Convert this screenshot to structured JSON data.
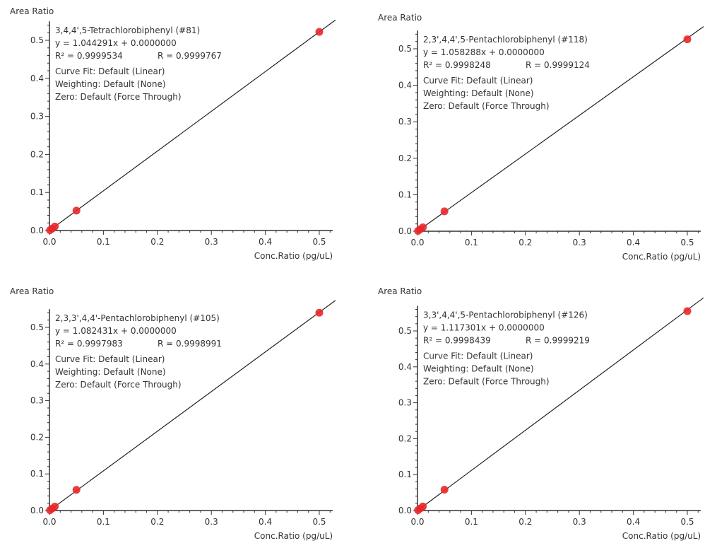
{
  "chart_data": [
    {
      "type": "scatter",
      "title": "3,4,4',5-Tetrachlorobiphenyl (#81)",
      "equation": "y = 1.044291x + 0.0000000",
      "r2_text": "R² = 0.9999534",
      "r_text": "R = 0.9999767",
      "curve_fit": "Curve Fit: Default (Linear)",
      "weighting": "Weighting: Default (None)",
      "zero": "Zero: Default (Force Through)",
      "ylabel": "Area Ratio",
      "xlabel": "Conc.Ratio (pg/uL)",
      "slope": 1.044291,
      "x": [
        0.001,
        0.005,
        0.01,
        0.05,
        0.5
      ],
      "y": [
        0.001,
        0.005,
        0.0104,
        0.0522,
        0.522
      ],
      "xlim": [
        0,
        0.525
      ],
      "ylim": [
        0,
        0.55
      ],
      "xticks": [
        "0.0",
        "0.1",
        "0.2",
        "0.3",
        "0.4",
        "0.5"
      ],
      "yticks": [
        "0.0",
        "0.1",
        "0.2",
        "0.3",
        "0.4",
        "0.5"
      ]
    },
    {
      "type": "scatter",
      "title": "2,3',4,4',5-Pentachlorobiphenyl (#118)",
      "equation": "y = 1.058288x + 0.0000000",
      "r2_text": "R² = 0.9998248",
      "r_text": "R = 0.9999124",
      "curve_fit": "Curve Fit: Default (Linear)",
      "weighting": "Weighting: Default (None)",
      "zero": "Zero: Default (Force Through)",
      "ylabel": "Area Ratio",
      "xlabel": "Conc.Ratio (pg/uL)",
      "slope": 1.058288,
      "x": [
        0.001,
        0.005,
        0.01,
        0.05,
        0.5
      ],
      "y": [
        0.001,
        0.0053,
        0.0106,
        0.0546,
        0.526
      ],
      "xlim": [
        0,
        0.525
      ],
      "ylim": [
        0,
        0.55
      ],
      "xticks": [
        "0.0",
        "0.1",
        "0.2",
        "0.3",
        "0.4",
        "0.5"
      ],
      "yticks": [
        "0.0",
        "0.1",
        "0.2",
        "0.3",
        "0.4",
        "0.5"
      ]
    },
    {
      "type": "scatter",
      "title": "2,3,3',4,4'-Pentachlorobiphenyl (#105)",
      "equation": "y = 1.082431x + 0.0000000",
      "r2_text": "R² = 0.9997983",
      "r_text": "R = 0.9998991",
      "curve_fit": "Curve Fit: Default (Linear)",
      "weighting": "Weighting: Default (None)",
      "zero": "Zero: Default (Force Through)",
      "ylabel": "Area Ratio",
      "xlabel": "Conc.Ratio (pg/uL)",
      "slope": 1.082431,
      "x": [
        0.001,
        0.005,
        0.01,
        0.05,
        0.5
      ],
      "y": [
        0.001,
        0.0054,
        0.0108,
        0.0565,
        0.54
      ],
      "xlim": [
        0,
        0.525
      ],
      "ylim": [
        0,
        0.55
      ],
      "xticks": [
        "0.0",
        "0.1",
        "0.2",
        "0.3",
        "0.4",
        "0.5"
      ],
      "yticks": [
        "0.0",
        "0.1",
        "0.2",
        "0.3",
        "0.4",
        "0.5"
      ]
    },
    {
      "type": "scatter",
      "title": "3,3',4,4',5-Pentachlorobiphenyl (#126)",
      "equation": "y = 1.117301x + 0.0000000",
      "r2_text": "R² = 0.9998439",
      "r_text": "R = 0.9999219",
      "curve_fit": "Curve Fit: Default (Linear)",
      "weighting": "Weighting: Default (None)",
      "zero": "Zero: Default (Force Through)",
      "ylabel": "Area Ratio",
      "xlabel": "Conc.Ratio (pg/uL)",
      "slope": 1.117301,
      "x": [
        0.001,
        0.005,
        0.01,
        0.05,
        0.5
      ],
      "y": [
        0.0011,
        0.0056,
        0.0112,
        0.058,
        0.555
      ],
      "xlim": [
        0,
        0.525
      ],
      "ylim": [
        0,
        0.57
      ],
      "xticks": [
        "0.0",
        "0.1",
        "0.2",
        "0.3",
        "0.4",
        "0.5"
      ],
      "yticks": [
        "0.0",
        "0.1",
        "0.2",
        "0.3",
        "0.4",
        "0.5"
      ]
    }
  ],
  "colors": {
    "point": "#e8282b",
    "line": "#222222"
  }
}
